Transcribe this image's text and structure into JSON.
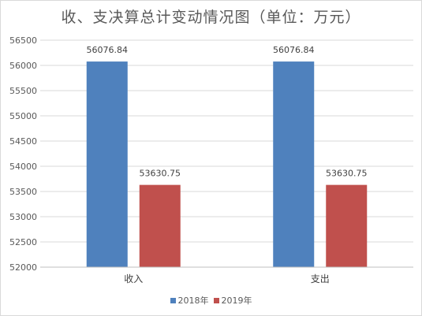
{
  "chart_data": {
    "type": "bar",
    "title": "收、支决算总计变动情况图（单位：万元）",
    "xlabel": "",
    "ylabel": "",
    "categories": [
      "收入",
      "支出"
    ],
    "series": [
      {
        "name": "2018年",
        "values": [
          56076.84,
          56076.84
        ],
        "color": "#4f81bd",
        "labels": [
          "56076.84",
          "56076.84"
        ]
      },
      {
        "name": "2019年",
        "values": [
          53630.75,
          53630.75
        ],
        "color": "#c0504d",
        "labels": [
          "53630.75",
          "53630.75"
        ]
      }
    ],
    "ylim": [
      52000,
      56500
    ],
    "yticks": [
      "52000",
      "52500",
      "53000",
      "53500",
      "54000",
      "54500",
      "55000",
      "55500",
      "56000",
      "56500"
    ],
    "grid": true,
    "legend_position": "bottom"
  }
}
